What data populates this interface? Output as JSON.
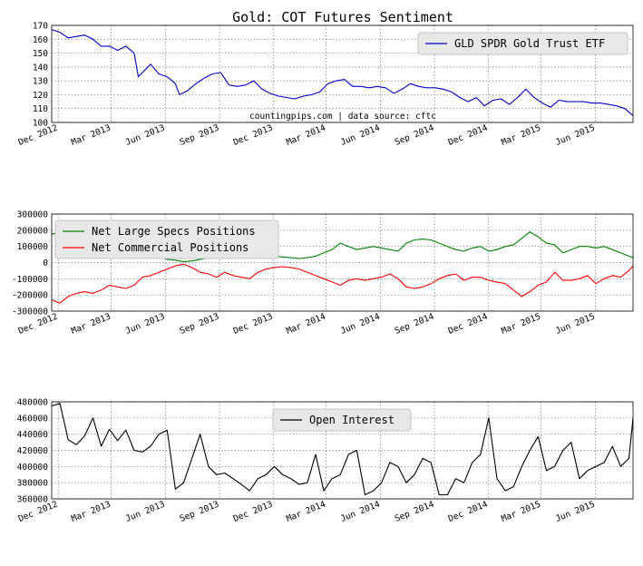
{
  "title": "Gold: COT Futures Sentiment",
  "note": "countingpips.com | data source: cftc",
  "x_ticks": [
    "Dec 2012",
    "Mar 2013",
    "Jun 2013",
    "Sep 2013",
    "Dec 2013",
    "Mar 2014",
    "Jun 2014",
    "Sep 2014",
    "Dec 2014",
    "Mar 2015",
    "Jun 2015"
  ],
  "chart_data": [
    {
      "type": "line",
      "title": "",
      "xlabel": "",
      "ylabel": "",
      "x_range": [
        "2012-11-20",
        "2015-08-04"
      ],
      "ylim": [
        100,
        170
      ],
      "y_ticks": [
        100,
        110,
        120,
        130,
        140,
        150,
        160,
        170
      ],
      "legend_position": "top-right",
      "grid": true,
      "series": [
        {
          "name": "GLD SPDR Gold Trust ETF",
          "color": "#0000cc",
          "x": [
            "2012-11-20",
            "2012-12-04",
            "2012-12-18",
            "2013-01-01",
            "2013-01-15",
            "2013-01-29",
            "2013-02-12",
            "2013-02-26",
            "2013-03-12",
            "2013-03-26",
            "2013-04-09",
            "2013-04-16",
            "2013-04-23",
            "2013-05-07",
            "2013-05-21",
            "2013-06-04",
            "2013-06-18",
            "2013-06-25",
            "2013-07-09",
            "2013-07-23",
            "2013-08-06",
            "2013-08-20",
            "2013-09-03",
            "2013-09-17",
            "2013-10-01",
            "2013-10-15",
            "2013-10-29",
            "2013-11-12",
            "2013-11-26",
            "2013-12-10",
            "2013-12-24",
            "2014-01-07",
            "2014-01-21",
            "2014-02-04",
            "2014-02-18",
            "2014-03-04",
            "2014-03-18",
            "2014-04-01",
            "2014-04-15",
            "2014-04-29",
            "2014-05-13",
            "2014-05-27",
            "2014-06-10",
            "2014-06-24",
            "2014-07-08",
            "2014-07-22",
            "2014-08-05",
            "2014-08-19",
            "2014-09-02",
            "2014-09-16",
            "2014-09-30",
            "2014-10-14",
            "2014-10-28",
            "2014-11-11",
            "2014-11-25",
            "2014-12-09",
            "2014-12-23",
            "2015-01-06",
            "2015-01-20",
            "2015-02-03",
            "2015-02-17",
            "2015-03-03",
            "2015-03-17",
            "2015-03-31",
            "2015-04-14",
            "2015-04-28",
            "2015-05-12",
            "2015-05-26",
            "2015-06-09",
            "2015-06-23",
            "2015-07-07",
            "2015-07-21",
            "2015-08-04"
          ],
          "values": [
            167,
            165,
            161,
            162,
            163,
            160,
            155,
            155,
            152,
            155,
            150,
            133,
            136,
            142,
            135,
            133,
            128,
            120,
            123,
            128,
            132,
            135,
            136,
            127,
            126,
            127,
            130,
            124,
            121,
            119,
            118,
            117,
            119,
            120,
            122,
            128,
            130,
            131,
            126,
            126,
            125,
            126,
            125,
            121,
            124,
            128,
            126,
            125,
            125,
            124,
            122,
            118,
            115,
            118,
            112,
            116,
            117,
            113,
            118,
            124,
            118,
            114,
            111,
            116,
            115,
            115,
            115,
            114,
            114,
            113,
            112,
            110,
            105
          ]
        }
      ]
    },
    {
      "type": "line",
      "title": "",
      "xlabel": "",
      "ylabel": "",
      "x_range": [
        "2012-11-20",
        "2015-08-04"
      ],
      "ylim": [
        -300000,
        300000
      ],
      "y_ticks": [
        -300000,
        -200000,
        -100000,
        0,
        100000,
        200000,
        300000
      ],
      "legend_position": "top-left",
      "grid": true,
      "series": [
        {
          "name": "Net Large Specs Positions",
          "color": "#008000",
          "x": [
            "2012-11-20",
            "2012-12-04",
            "2012-12-18",
            "2013-01-01",
            "2013-01-15",
            "2013-01-29",
            "2013-02-12",
            "2013-02-26",
            "2013-03-12",
            "2013-03-26",
            "2013-04-09",
            "2013-04-23",
            "2013-05-07",
            "2013-05-21",
            "2013-06-04",
            "2013-06-18",
            "2013-07-02",
            "2013-07-16",
            "2013-07-30",
            "2013-08-13",
            "2013-08-27",
            "2013-09-10",
            "2013-09-24",
            "2013-10-08",
            "2013-10-22",
            "2013-11-05",
            "2013-11-19",
            "2013-12-03",
            "2013-12-17",
            "2013-12-31",
            "2014-01-14",
            "2014-01-28",
            "2014-02-11",
            "2014-02-25",
            "2014-03-11",
            "2014-03-25",
            "2014-04-08",
            "2014-04-22",
            "2014-05-06",
            "2014-05-20",
            "2014-06-03",
            "2014-06-17",
            "2014-07-01",
            "2014-07-15",
            "2014-07-29",
            "2014-08-12",
            "2014-08-26",
            "2014-09-09",
            "2014-09-23",
            "2014-10-07",
            "2014-10-21",
            "2014-11-04",
            "2014-11-18",
            "2014-12-02",
            "2014-12-16",
            "2014-12-30",
            "2015-01-13",
            "2015-01-27",
            "2015-02-10",
            "2015-02-24",
            "2015-03-10",
            "2015-03-24",
            "2015-04-07",
            "2015-04-21",
            "2015-05-05",
            "2015-05-19",
            "2015-06-02",
            "2015-06-16",
            "2015-06-30",
            "2015-07-14",
            "2015-07-28",
            "2015-08-04"
          ],
          "values": [
            175000,
            190000,
            170000,
            175000,
            160000,
            150000,
            145000,
            130000,
            100000,
            120000,
            105000,
            60000,
            55000,
            40000,
            20000,
            15000,
            5000,
            10000,
            20000,
            30000,
            40000,
            60000,
            45000,
            50000,
            55000,
            60000,
            45000,
            40000,
            35000,
            30000,
            25000,
            30000,
            40000,
            60000,
            80000,
            120000,
            100000,
            80000,
            90000,
            100000,
            90000,
            80000,
            70000,
            120000,
            140000,
            145000,
            140000,
            120000,
            100000,
            80000,
            70000,
            90000,
            100000,
            70000,
            80000,
            100000,
            110000,
            150000,
            190000,
            160000,
            120000,
            110000,
            60000,
            80000,
            100000,
            100000,
            90000,
            100000,
            80000,
            60000,
            40000,
            30000
          ]
        },
        {
          "name": "Net Commercial Positions",
          "color": "#ff0000",
          "x": [
            "2012-11-20",
            "2012-12-04",
            "2012-12-18",
            "2013-01-01",
            "2013-01-15",
            "2013-01-29",
            "2013-02-12",
            "2013-02-26",
            "2013-03-12",
            "2013-03-26",
            "2013-04-09",
            "2013-04-23",
            "2013-05-07",
            "2013-05-21",
            "2013-06-04",
            "2013-06-18",
            "2013-07-02",
            "2013-07-16",
            "2013-07-30",
            "2013-08-13",
            "2013-08-27",
            "2013-09-10",
            "2013-09-24",
            "2013-10-08",
            "2013-10-22",
            "2013-11-05",
            "2013-11-19",
            "2013-12-03",
            "2013-12-17",
            "2013-12-31",
            "2014-01-14",
            "2014-01-28",
            "2014-02-11",
            "2014-02-25",
            "2014-03-11",
            "2014-03-25",
            "2014-04-08",
            "2014-04-22",
            "2014-05-06",
            "2014-05-20",
            "2014-06-03",
            "2014-06-17",
            "2014-07-01",
            "2014-07-15",
            "2014-07-29",
            "2014-08-12",
            "2014-08-26",
            "2014-09-09",
            "2014-09-23",
            "2014-10-07",
            "2014-10-21",
            "2014-11-04",
            "2014-11-18",
            "2014-12-02",
            "2014-12-16",
            "2014-12-30",
            "2015-01-13",
            "2015-01-27",
            "2015-02-10",
            "2015-02-24",
            "2015-03-10",
            "2015-03-24",
            "2015-04-07",
            "2015-04-21",
            "2015-05-05",
            "2015-05-19",
            "2015-06-02",
            "2015-06-16",
            "2015-06-30",
            "2015-07-14",
            "2015-07-28",
            "2015-08-04"
          ],
          "values": [
            -230000,
            -250000,
            -210000,
            -190000,
            -180000,
            -190000,
            -170000,
            -140000,
            -150000,
            -160000,
            -140000,
            -90000,
            -80000,
            -60000,
            -40000,
            -20000,
            -10000,
            -30000,
            -60000,
            -70000,
            -90000,
            -60000,
            -80000,
            -90000,
            -100000,
            -60000,
            -40000,
            -30000,
            -25000,
            -30000,
            -40000,
            -60000,
            -80000,
            -100000,
            -120000,
            -140000,
            -110000,
            -100000,
            -110000,
            -100000,
            -90000,
            -70000,
            -100000,
            -150000,
            -160000,
            -150000,
            -130000,
            -100000,
            -80000,
            -70000,
            -110000,
            -90000,
            -90000,
            -110000,
            -120000,
            -130000,
            -170000,
            -210000,
            -180000,
            -140000,
            -120000,
            -60000,
            -110000,
            -110000,
            -100000,
            -80000,
            -130000,
            -100000,
            -80000,
            -90000,
            -50000,
            -20000
          ]
        }
      ]
    },
    {
      "type": "line",
      "title": "",
      "xlabel": "",
      "ylabel": "",
      "x_range": [
        "2012-11-20",
        "2015-08-04"
      ],
      "ylim": [
        360000,
        480000
      ],
      "y_ticks": [
        360000,
        380000,
        400000,
        420000,
        440000,
        460000,
        480000
      ],
      "legend_position": "top-center",
      "grid": true,
      "series": [
        {
          "name": "Open Interest",
          "color": "#000000",
          "x": [
            "2012-11-20",
            "2012-12-04",
            "2012-12-18",
            "2013-01-01",
            "2013-01-15",
            "2013-01-29",
            "2013-02-12",
            "2013-02-26",
            "2013-03-12",
            "2013-03-26",
            "2013-04-09",
            "2013-04-23",
            "2013-05-07",
            "2013-05-21",
            "2013-06-04",
            "2013-06-18",
            "2013-07-02",
            "2013-07-16",
            "2013-07-30",
            "2013-08-13",
            "2013-08-27",
            "2013-09-10",
            "2013-09-24",
            "2013-10-08",
            "2013-10-22",
            "2013-11-05",
            "2013-11-19",
            "2013-12-03",
            "2013-12-17",
            "2013-12-31",
            "2014-01-14",
            "2014-01-28",
            "2014-02-11",
            "2014-02-25",
            "2014-03-11",
            "2014-03-25",
            "2014-04-08",
            "2014-04-22",
            "2014-05-06",
            "2014-05-20",
            "2014-06-03",
            "2014-06-17",
            "2014-07-01",
            "2014-07-15",
            "2014-07-29",
            "2014-08-12",
            "2014-08-26",
            "2014-09-09",
            "2014-09-23",
            "2014-10-07",
            "2014-10-21",
            "2014-11-04",
            "2014-11-18",
            "2014-12-02",
            "2014-12-16",
            "2014-12-30",
            "2015-01-13",
            "2015-01-27",
            "2015-02-10",
            "2015-02-24",
            "2015-03-10",
            "2015-03-24",
            "2015-04-07",
            "2015-04-21",
            "2015-05-05",
            "2015-05-19",
            "2015-06-02",
            "2015-06-16",
            "2015-06-30",
            "2015-07-14",
            "2015-07-28",
            "2015-08-04"
          ],
          "values": [
            475000,
            478000,
            433000,
            427000,
            438000,
            460000,
            425000,
            446000,
            432000,
            445000,
            420000,
            418000,
            425000,
            440000,
            445000,
            372000,
            380000,
            410000,
            440000,
            400000,
            390000,
            392000,
            385000,
            378000,
            370000,
            385000,
            390000,
            400000,
            390000,
            385000,
            378000,
            380000,
            415000,
            370000,
            385000,
            390000,
            415000,
            420000,
            365000,
            370000,
            380000,
            405000,
            400000,
            380000,
            390000,
            410000,
            405000,
            365000,
            365000,
            385000,
            380000,
            405000,
            415000,
            460000,
            385000,
            370000,
            375000,
            400000,
            420000,
            437000,
            395000,
            400000,
            420000,
            430000,
            385000,
            395000,
            400000,
            405000,
            425000,
            400000,
            410000,
            460000
          ]
        }
      ]
    }
  ]
}
